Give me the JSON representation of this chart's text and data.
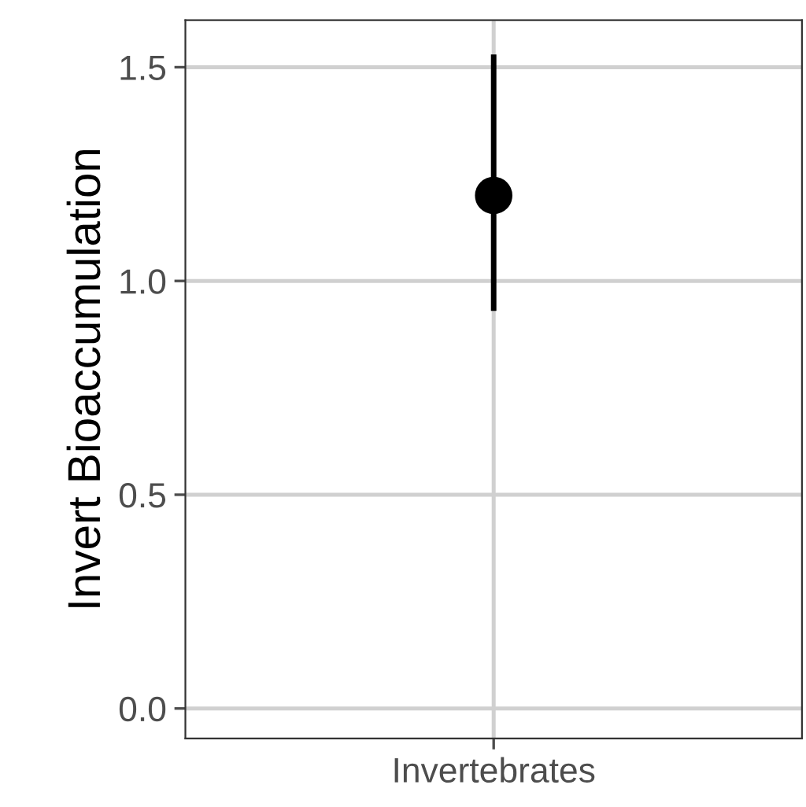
{
  "chart_data": {
    "type": "scatter",
    "ylabel": "Invert Bioaccumulation",
    "categories": [
      "Invertebrates"
    ],
    "series": [
      {
        "color": "#000000",
        "values": [
          1.2
        ],
        "errors": [
          [
            0.93,
            1.53
          ]
        ]
      }
    ],
    "ylim": [
      -0.07,
      1.61
    ],
    "yticks": [
      {
        "value": 0,
        "label": "0.0"
      },
      0.5,
      {
        "value": 1,
        "label": "1.0"
      },
      1.5
    ],
    "grid": true,
    "marker": "circle"
  }
}
